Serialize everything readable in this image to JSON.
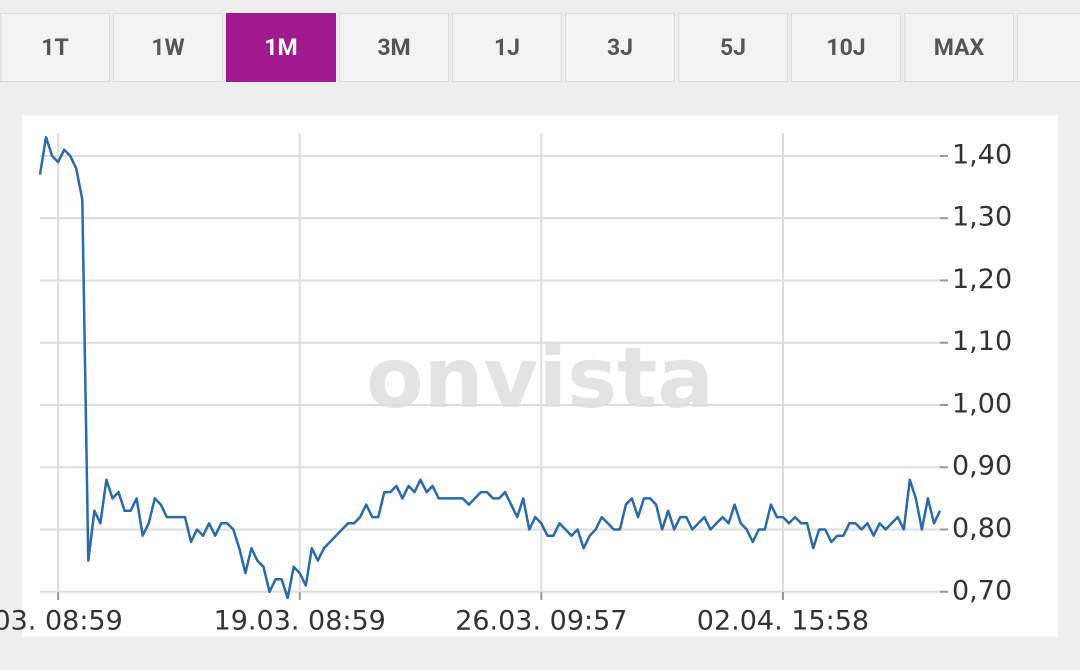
{
  "tabs": {
    "items": [
      "1T",
      "1W",
      "1M",
      "3M",
      "1J",
      "3J",
      "5J",
      "10J",
      "MAX"
    ],
    "active": 2
  },
  "watermark": "onvista",
  "chart_data": {
    "type": "line",
    "color": "#2a6aa8",
    "grid": true,
    "categories": [
      null,
      null,
      null,
      "03. 08:59",
      null,
      null,
      null,
      null,
      null,
      null,
      null,
      null,
      null,
      null,
      null,
      null,
      null,
      null,
      null,
      null,
      null,
      null,
      null,
      null,
      null,
      null,
      null,
      null,
      null,
      null,
      null,
      null,
      null,
      null,
      null,
      null,
      null,
      null,
      null,
      null,
      null,
      null,
      null,
      "19.03. 08:59",
      null,
      null,
      null,
      null,
      null,
      null,
      null,
      null,
      null,
      null,
      null,
      null,
      null,
      null,
      null,
      null,
      null,
      null,
      null,
      null,
      null,
      null,
      null,
      null,
      null,
      null,
      null,
      null,
      null,
      null,
      null,
      null,
      null,
      null,
      null,
      null,
      null,
      null,
      null,
      "26.03. 09:57",
      null,
      null,
      null,
      null,
      null,
      null,
      null,
      null,
      null,
      null,
      null,
      null,
      null,
      null,
      null,
      null,
      null,
      null,
      null,
      null,
      null,
      null,
      null,
      null,
      null,
      null,
      null,
      null,
      null,
      null,
      null,
      null,
      null,
      null,
      null,
      null,
      null,
      null,
      null,
      "02.04. 15:58",
      null,
      null,
      null,
      null,
      null,
      null,
      null,
      null,
      null,
      null,
      null,
      null,
      null,
      null,
      null,
      null,
      null,
      null,
      null,
      null,
      null,
      null,
      null,
      null,
      null,
      null
    ],
    "values": [
      1.37,
      1.43,
      1.4,
      1.39,
      1.41,
      1.4,
      1.38,
      1.33,
      0.75,
      0.83,
      0.81,
      0.88,
      0.85,
      0.86,
      0.83,
      0.83,
      0.85,
      0.79,
      0.81,
      0.85,
      0.84,
      0.82,
      0.82,
      0.82,
      0.82,
      0.78,
      0.8,
      0.79,
      0.81,
      0.79,
      0.81,
      0.81,
      0.8,
      0.77,
      0.73,
      0.77,
      0.75,
      0.74,
      0.7,
      0.72,
      0.72,
      0.69,
      0.74,
      0.73,
      0.71,
      0.77,
      0.75,
      0.77,
      0.78,
      0.79,
      0.8,
      0.81,
      0.81,
      0.82,
      0.84,
      0.82,
      0.82,
      0.86,
      0.86,
      0.87,
      0.85,
      0.87,
      0.86,
      0.88,
      0.86,
      0.87,
      0.85,
      0.85,
      0.85,
      0.85,
      0.85,
      0.84,
      0.85,
      0.86,
      0.86,
      0.85,
      0.85,
      0.86,
      0.84,
      0.82,
      0.85,
      0.8,
      0.82,
      0.81,
      0.79,
      0.79,
      0.81,
      0.8,
      0.79,
      0.8,
      0.77,
      0.79,
      0.8,
      0.82,
      0.81,
      0.8,
      0.8,
      0.84,
      0.85,
      0.82,
      0.85,
      0.85,
      0.84,
      0.8,
      0.83,
      0.8,
      0.82,
      0.82,
      0.8,
      0.81,
      0.82,
      0.8,
      0.81,
      0.82,
      0.81,
      0.84,
      0.81,
      0.8,
      0.78,
      0.8,
      0.8,
      0.84,
      0.82,
      0.82,
      0.81,
      0.82,
      0.81,
      0.81,
      0.77,
      0.8,
      0.8,
      0.78,
      0.79,
      0.79,
      0.81,
      0.81,
      0.8,
      0.81,
      0.79,
      0.81,
      0.8,
      0.81,
      0.82,
      0.8,
      0.88,
      0.85,
      0.8,
      0.85,
      0.81,
      0.83
    ],
    "ylim": [
      0.69,
      1.44
    ],
    "yticks": [
      {
        "value": 0.7,
        "label": "0,70"
      },
      {
        "value": 0.8,
        "label": "0,80"
      },
      {
        "value": 0.9,
        "label": "0,90"
      },
      {
        "value": 1.0,
        "label": "1,00"
      },
      {
        "value": 1.1,
        "label": "1,10"
      },
      {
        "value": 1.2,
        "label": "1,20"
      },
      {
        "value": 1.3,
        "label": "1,30"
      },
      {
        "value": 1.4,
        "label": "1,40"
      }
    ]
  }
}
